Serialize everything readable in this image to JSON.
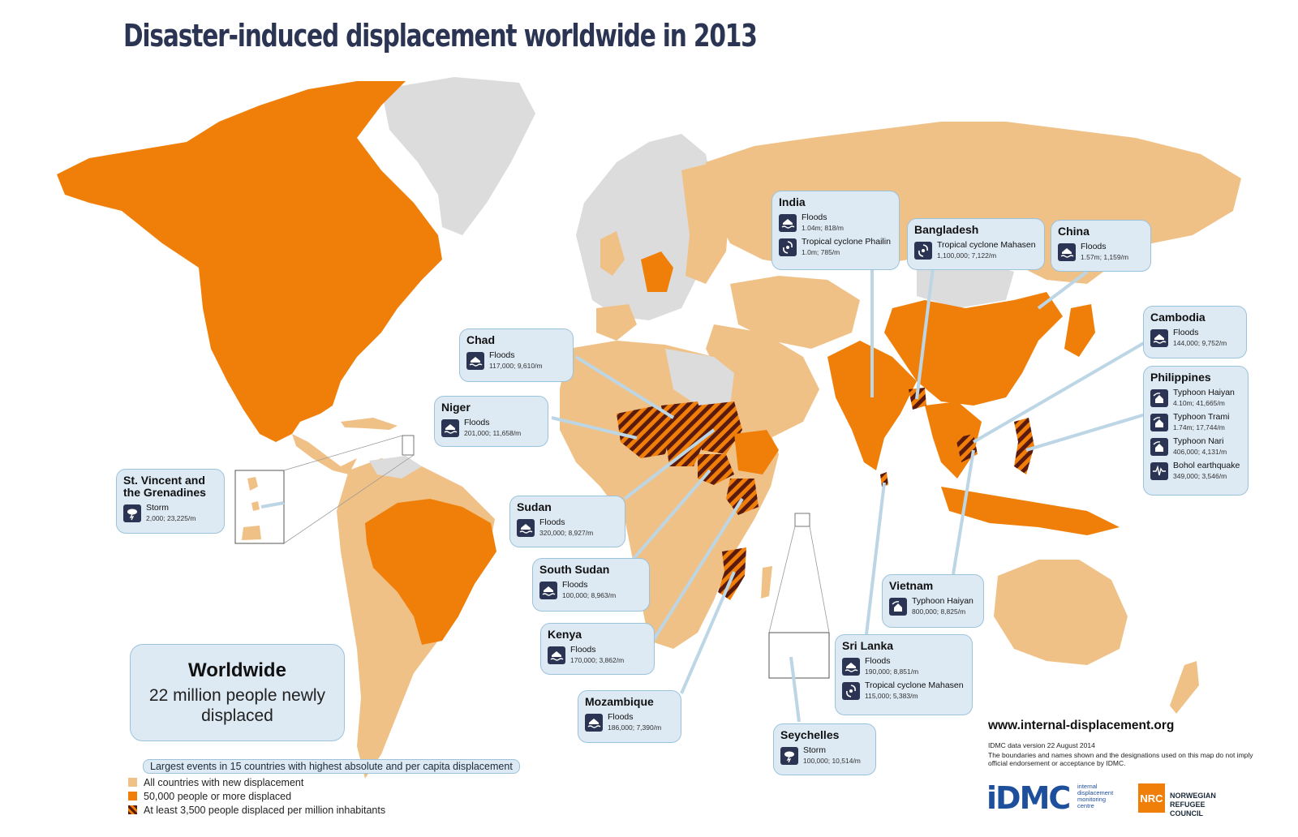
{
  "title": "Disaster-induced displacement worldwide in 2013",
  "colors": {
    "light": "#f0c186",
    "dark": "#f07f09",
    "nodata": "#dcdcdc",
    "stripe": "#5a1a0e",
    "callout_bg": "#dde9f3",
    "callout_border": "#9cc3dc",
    "ocean": "#ffffff",
    "icon_bg": "#2b3553"
  },
  "callouts": [
    {
      "id": "india",
      "country": "India",
      "events": [
        {
          "type": "Floods",
          "stats": "1.04m; 818/m",
          "icon": "flood-icon"
        },
        {
          "type": "Tropical cyclone Phailin",
          "stats": "1.0m; 785/m",
          "icon": "cyclone-icon"
        }
      ]
    },
    {
      "id": "bangladesh",
      "country": "Bangladesh",
      "events": [
        {
          "type": "Tropical cyclone Mahasen",
          "stats": "1,100,000; 7,122/m",
          "icon": "cyclone-icon"
        }
      ]
    },
    {
      "id": "china",
      "country": "China",
      "events": [
        {
          "type": "Floods",
          "stats": "1.57m; 1,159/m",
          "icon": "flood-icon"
        }
      ]
    },
    {
      "id": "cambodia",
      "country": "Cambodia",
      "events": [
        {
          "type": "Floods",
          "stats": "144,000; 9,752/m",
          "icon": "flood-icon"
        }
      ]
    },
    {
      "id": "philippines",
      "country": "Philippines",
      "events": [
        {
          "type": "Typhoon Haiyan",
          "stats": "4.10m; 41,665/m",
          "icon": "storm-house-icon"
        },
        {
          "type": "Typhoon Trami",
          "stats": "1.74m; 17,744/m",
          "icon": "storm-house-icon"
        },
        {
          "type": "Typhoon Nari",
          "stats": "406,000; 4,131/m",
          "icon": "storm-house-icon"
        },
        {
          "type": "Bohol earthquake",
          "stats": "349,000; 3,546/m",
          "icon": "earthquake-icon"
        }
      ]
    },
    {
      "id": "chad",
      "country": "Chad",
      "events": [
        {
          "type": "Floods",
          "stats": "117,000; 9,610/m",
          "icon": "flood-icon"
        }
      ]
    },
    {
      "id": "niger",
      "country": "Niger",
      "events": [
        {
          "type": "Floods",
          "stats": "201,000; 11,658/m",
          "icon": "flood-icon"
        }
      ]
    },
    {
      "id": "svg",
      "country": "St. Vincent and the Grenadines",
      "events": [
        {
          "type": "Storm",
          "stats": "2,000; 23,225/m",
          "icon": "storm-icon"
        }
      ]
    },
    {
      "id": "sudan",
      "country": "Sudan",
      "events": [
        {
          "type": "Floods",
          "stats": "320,000; 8,927/m",
          "icon": "flood-icon"
        }
      ]
    },
    {
      "id": "southsudan",
      "country": "South Sudan",
      "events": [
        {
          "type": "Floods",
          "stats": "100,000; 8,963/m",
          "icon": "flood-icon"
        }
      ]
    },
    {
      "id": "kenya",
      "country": "Kenya",
      "events": [
        {
          "type": "Floods",
          "stats": "170,000; 3,862/m",
          "icon": "flood-icon"
        }
      ]
    },
    {
      "id": "mozambique",
      "country": "Mozambique",
      "events": [
        {
          "type": "Floods",
          "stats": "186,000; 7,390/m",
          "icon": "flood-icon"
        }
      ]
    },
    {
      "id": "vietnam",
      "country": "Vietnam",
      "events": [
        {
          "type": "Typhoon Haiyan",
          "stats": "800,000; 8,825/m",
          "icon": "storm-house-icon"
        }
      ]
    },
    {
      "id": "srilanka",
      "country": "Sri Lanka",
      "events": [
        {
          "type": "Floods",
          "stats": "190,000; 8,851/m",
          "icon": "flood-icon"
        },
        {
          "type": "Tropical cyclone Mahasen",
          "stats": "115,000; 5,383/m",
          "icon": "cyclone-icon"
        }
      ]
    },
    {
      "id": "seychelles",
      "country": "Seychelles",
      "events": [
        {
          "type": "Storm",
          "stats": "100,000; 10,514/m",
          "icon": "storm-icon"
        }
      ]
    }
  ],
  "worldwide": {
    "title": "Worldwide",
    "text": "22 million people newly displaced"
  },
  "legend": {
    "callout": "Largest events in 15 countries with highest absolute and per capita displacement",
    "items": [
      {
        "label": "All countries with new displacement",
        "swatch": "light"
      },
      {
        "label": "50,000 people or more displaced",
        "swatch": "dark"
      },
      {
        "label": "At least 3,500 people displaced per million inhabitants",
        "swatch": "stripe"
      }
    ]
  },
  "footer": {
    "url": "www.internal-displacement.org",
    "version": "IDMC data version 22 August 2014",
    "disclaimer": "The boundaries and names shown and the designations used on this map do not imply official endorsement or acceptance by IDMC.",
    "idmc_logo": "iDMC",
    "idmc_sub": "internal displacement monitoring centre",
    "nrc_logo": "NRC",
    "nrc_name": "NORWEGIAN REFUGEE COUNCIL"
  }
}
